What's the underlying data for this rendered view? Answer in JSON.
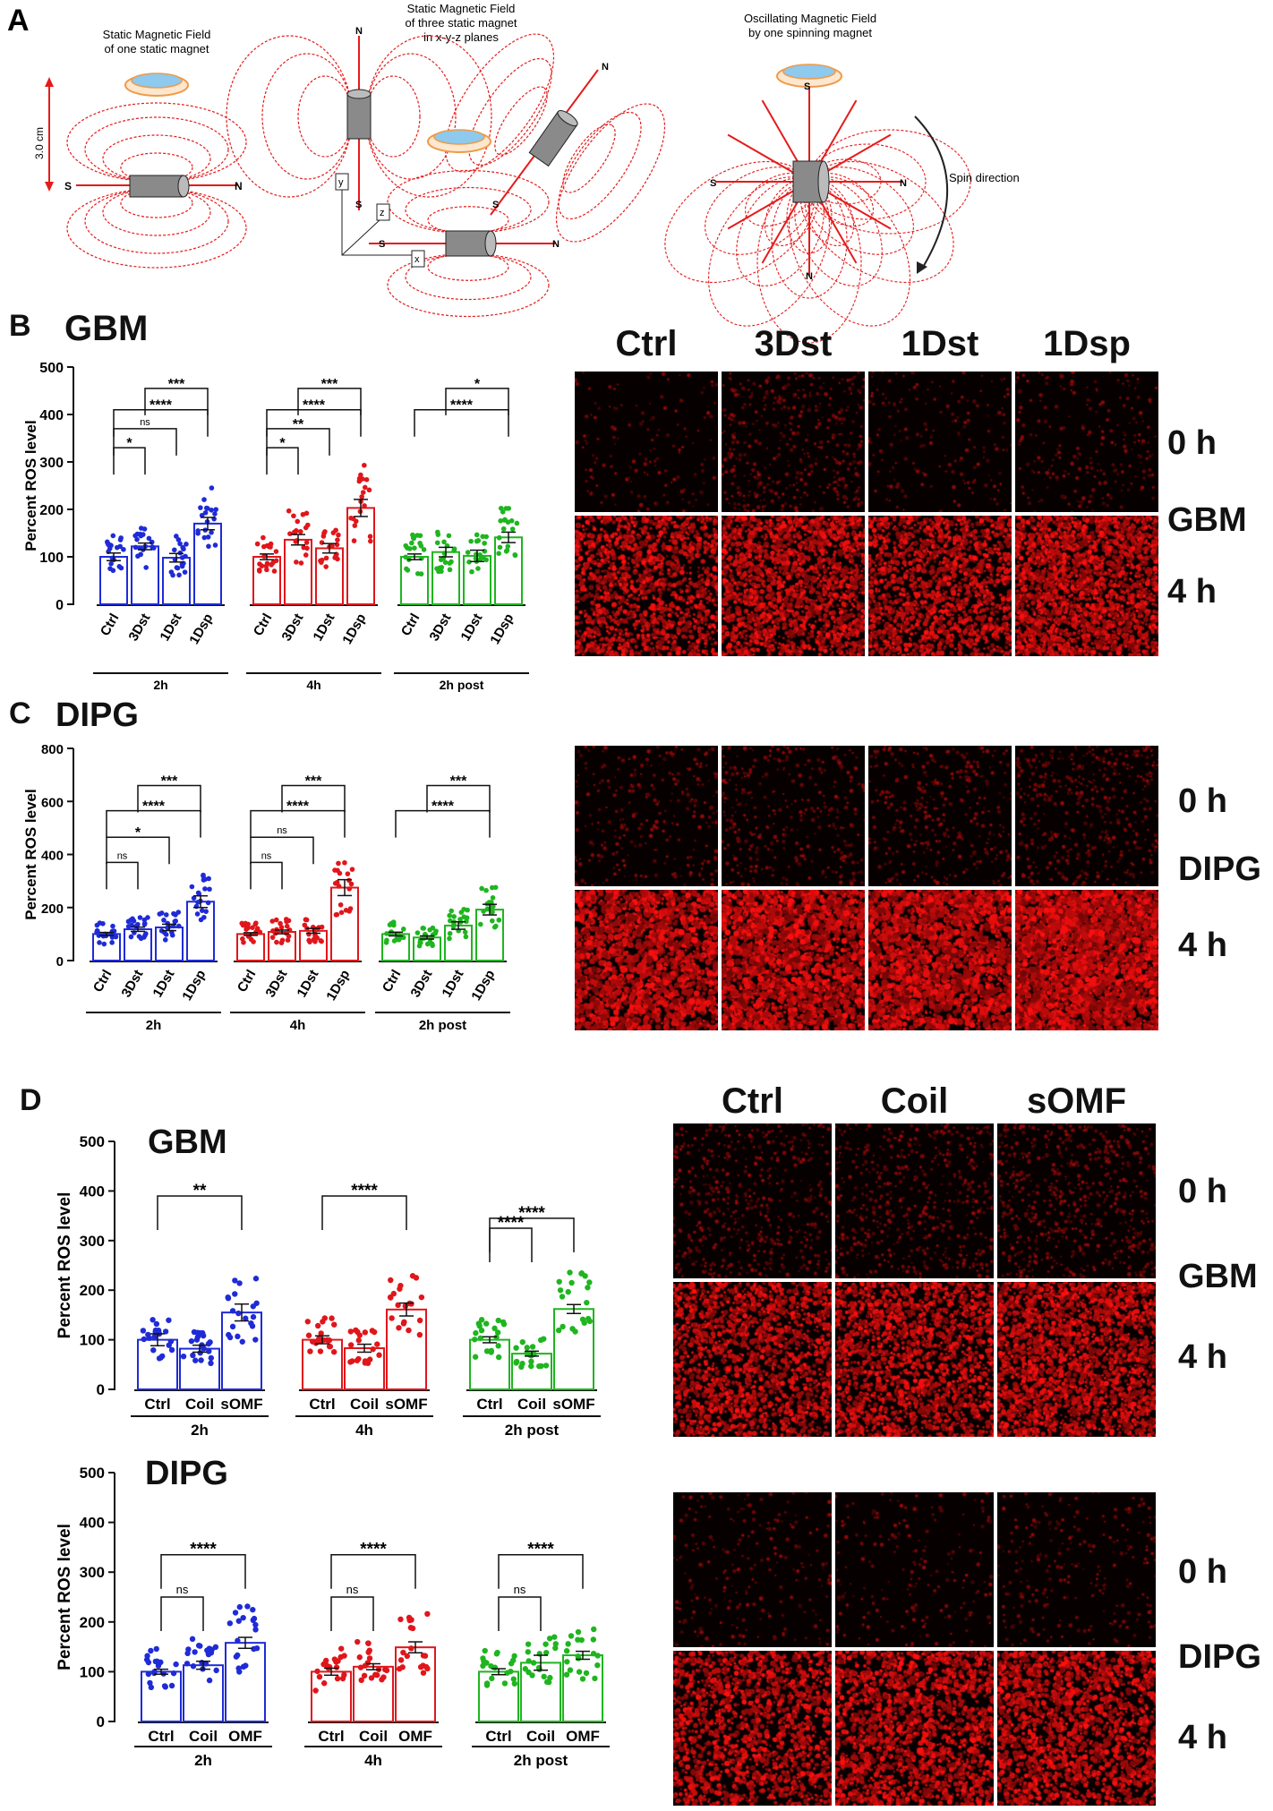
{
  "colors": {
    "blue": "#1f2bd6",
    "red": "#e0161b",
    "green": "#1fb51f",
    "field": "#e51b1b",
    "ring": "#f09a48",
    "dish": "#8ec9ee"
  },
  "panel_a": {
    "letter": "A",
    "title1": [
      "Static Magnetic Field",
      "of one static magnet"
    ],
    "title2": [
      "Static Magnetic Field",
      "of three static magnet",
      "in x-y-z planes"
    ],
    "title3": [
      "Oscillating Magnetic Field",
      "by one spinning magnet"
    ],
    "distance": "3.0 cm",
    "pole_s": "S",
    "pole_n": "N",
    "axis_x": "x",
    "axis_y": "y",
    "axis_z": "z",
    "spin": "Spin direction"
  },
  "panel_b": {
    "letter": "B",
    "title": "GBM",
    "img_cols": [
      "Ctrl",
      "3Dst",
      "1Dst",
      "1Dsp"
    ],
    "img_rows": [
      "0 h",
      "GBM",
      "4 h"
    ]
  },
  "panel_c": {
    "letter": "C",
    "title": "DIPG",
    "img_cols": [
      "Ctrl",
      "3Dst",
      "1Dst",
      "1Dsp"
    ],
    "img_rows": [
      "0 h",
      "DIPG",
      "4 h"
    ]
  },
  "panel_d": {
    "letter": "D",
    "gbm_title": "GBM",
    "dipg_title": "DIPG",
    "img_cols": [
      "Ctrl",
      "Coil",
      "sOMF"
    ],
    "gbm_rows": [
      "0 h",
      "GBM",
      "4 h"
    ],
    "dipg_rows": [
      "0 h",
      "DIPG",
      "4 h"
    ]
  },
  "chart_data": [
    {
      "id": "B",
      "type": "bar",
      "title": "GBM",
      "ylabel": "Percent ROS level",
      "ylim": [
        0,
        500
      ],
      "yticks": [
        0,
        100,
        200,
        300,
        400,
        500
      ],
      "groups": [
        {
          "name": "2h",
          "color": "blue",
          "categories": [
            "Ctrl",
            "3Dst",
            "1Dst",
            "1Dsp"
          ],
          "values": [
            100,
            122,
            98,
            170
          ],
          "sem": [
            8,
            7,
            9,
            13
          ]
        },
        {
          "name": "4h",
          "color": "red",
          "categories": [
            "Ctrl",
            "3Dst",
            "1Dst",
            "1Dsp"
          ],
          "values": [
            100,
            136,
            118,
            203
          ],
          "sem": [
            6,
            11,
            10,
            18
          ]
        },
        {
          "name": "2h post",
          "color": "green",
          "categories": [
            "Ctrl",
            "3Dst",
            "1Dst",
            "1Dsp"
          ],
          "values": [
            100,
            110,
            102,
            141
          ],
          "sem": [
            6,
            10,
            12,
            11
          ]
        }
      ],
      "annotations": [
        {
          "group": 0,
          "from": 0,
          "to": 1,
          "label": "*",
          "y": 330
        },
        {
          "group": 0,
          "from": 0,
          "to": 2,
          "label": "ns",
          "y": 370
        },
        {
          "group": 0,
          "from": 0,
          "to": 3,
          "label": "****",
          "y": 410
        },
        {
          "group": 0,
          "from": 1,
          "to": 3,
          "label": "***",
          "y": 455
        },
        {
          "group": 1,
          "from": 0,
          "to": 1,
          "label": "*",
          "y": 330
        },
        {
          "group": 1,
          "from": 0,
          "to": 2,
          "label": "**",
          "y": 370
        },
        {
          "group": 1,
          "from": 0,
          "to": 3,
          "label": "****",
          "y": 410
        },
        {
          "group": 1,
          "from": 1,
          "to": 3,
          "label": "***",
          "y": 455
        },
        {
          "group": 2,
          "from": 0,
          "to": 3,
          "label": "****",
          "y": 410
        },
        {
          "group": 2,
          "from": 1,
          "to": 3,
          "label": "*",
          "y": 455
        }
      ]
    },
    {
      "id": "C",
      "type": "bar",
      "title": "DIPG",
      "ylabel": "Percent ROS level",
      "ylim": [
        0,
        800
      ],
      "yticks": [
        0,
        200,
        400,
        600,
        800
      ],
      "groups": [
        {
          "name": "2h",
          "color": "blue",
          "categories": [
            "Ctrl",
            "3Dst",
            "1Dst",
            "1Dsp"
          ],
          "values": [
            100,
            118,
            125,
            222
          ],
          "sem": [
            6,
            8,
            12,
            22
          ]
        },
        {
          "name": "4h",
          "color": "red",
          "categories": [
            "Ctrl",
            "3Dst",
            "1Dst",
            "1Dsp"
          ],
          "values": [
            100,
            108,
            112,
            275
          ],
          "sem": [
            5,
            7,
            9,
            30
          ]
        },
        {
          "name": "2h post",
          "color": "green",
          "categories": [
            "Ctrl",
            "3Dst",
            "1Dst",
            "1Dsp"
          ],
          "values": [
            100,
            87,
            132,
            192
          ],
          "sem": [
            7,
            6,
            14,
            20
          ]
        }
      ],
      "annotations": [
        {
          "group": 0,
          "from": 0,
          "to": 1,
          "label": "ns",
          "y": 370
        },
        {
          "group": 0,
          "from": 0,
          "to": 2,
          "label": "*",
          "y": 465
        },
        {
          "group": 0,
          "from": 0,
          "to": 3,
          "label": "****",
          "y": 565
        },
        {
          "group": 0,
          "from": 1,
          "to": 3,
          "label": "***",
          "y": 660
        },
        {
          "group": 1,
          "from": 0,
          "to": 1,
          "label": "ns",
          "y": 370
        },
        {
          "group": 1,
          "from": 0,
          "to": 2,
          "label": "ns",
          "y": 465
        },
        {
          "group": 1,
          "from": 0,
          "to": 3,
          "label": "****",
          "y": 565
        },
        {
          "group": 1,
          "from": 1,
          "to": 3,
          "label": "***",
          "y": 660
        },
        {
          "group": 2,
          "from": 0,
          "to": 3,
          "label": "****",
          "y": 565
        },
        {
          "group": 2,
          "from": 1,
          "to": 3,
          "label": "***",
          "y": 660
        }
      ]
    },
    {
      "id": "D-GBM",
      "type": "bar",
      "title": "GBM",
      "ylabel": "Percent ROS level",
      "ylim": [
        0,
        500
      ],
      "yticks": [
        0,
        100,
        200,
        300,
        400,
        500
      ],
      "groups": [
        {
          "name": "2h",
          "color": "blue",
          "categories": [
            "Ctrl",
            "Coil",
            "sOMF"
          ],
          "values": [
            100,
            82,
            155
          ],
          "sem": [
            12,
            7,
            17
          ]
        },
        {
          "name": "4h",
          "color": "red",
          "categories": [
            "Ctrl",
            "Coil",
            "sOMF"
          ],
          "values": [
            100,
            83,
            161
          ],
          "sem": [
            8,
            8,
            13
          ]
        },
        {
          "name": "2h post",
          "color": "green",
          "categories": [
            "Ctrl",
            "Coil",
            "sOMF"
          ],
          "values": [
            100,
            72,
            162
          ],
          "sem": [
            6,
            5,
            9
          ]
        }
      ],
      "annotations": [
        {
          "group": 0,
          "from": 0,
          "to": 2,
          "label": "**",
          "y": 390
        },
        {
          "group": 1,
          "from": 0,
          "to": 2,
          "label": "****",
          "y": 390
        },
        {
          "group": 2,
          "from": 0,
          "to": 1,
          "label": "****",
          "y": 325
        },
        {
          "group": 2,
          "from": 0,
          "to": 2,
          "label": "****",
          "y": 345
        }
      ]
    },
    {
      "id": "D-DIPG",
      "type": "bar",
      "title": "DIPG",
      "ylabel": "Percent ROS level",
      "ylim": [
        0,
        500
      ],
      "yticks": [
        0,
        100,
        200,
        300,
        400,
        500
      ],
      "groups": [
        {
          "name": "2h",
          "color": "blue",
          "categories": [
            "Ctrl",
            "Coil",
            "OMF"
          ],
          "values": [
            100,
            113,
            158
          ],
          "sem": [
            5,
            8,
            11
          ]
        },
        {
          "name": "4h",
          "color": "red",
          "categories": [
            "Ctrl",
            "Coil",
            "OMF"
          ],
          "values": [
            100,
            110,
            149
          ],
          "sem": [
            7,
            6,
            11
          ]
        },
        {
          "name": "2h post",
          "color": "green",
          "categories": [
            "Ctrl",
            "Coil",
            "OMF"
          ],
          "values": [
            100,
            118,
            133
          ],
          "sem": [
            6,
            15,
            8
          ]
        }
      ],
      "annotations": [
        {
          "group": 0,
          "from": 0,
          "to": 1,
          "label": "ns",
          "y": 250
        },
        {
          "group": 0,
          "from": 0,
          "to": 2,
          "label": "****",
          "y": 335
        },
        {
          "group": 1,
          "from": 0,
          "to": 1,
          "label": "ns",
          "y": 250
        },
        {
          "group": 1,
          "from": 0,
          "to": 2,
          "label": "****",
          "y": 335
        },
        {
          "group": 2,
          "from": 0,
          "to": 1,
          "label": "ns",
          "y": 250
        },
        {
          "group": 2,
          "from": 0,
          "to": 2,
          "label": "****",
          "y": 335
        }
      ]
    }
  ]
}
